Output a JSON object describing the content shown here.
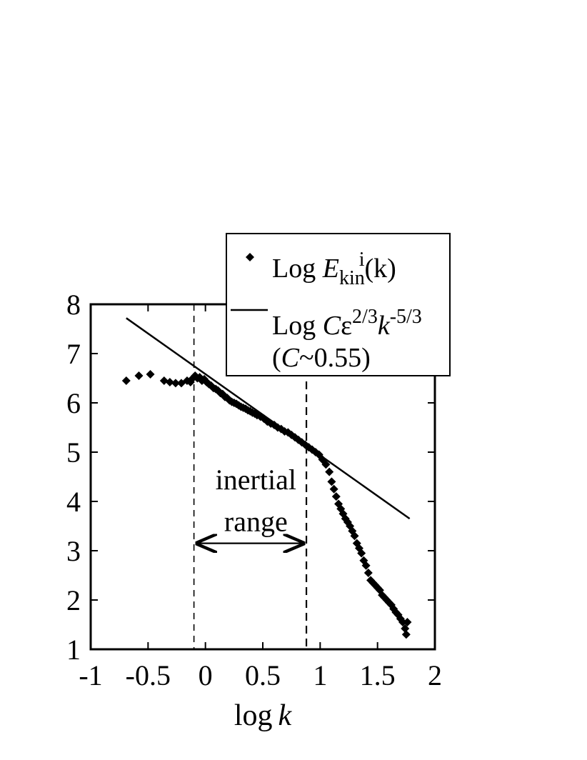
{
  "chart_data": {
    "type": "scatter",
    "xlabel": "log k",
    "ylabel": "",
    "xlim": [
      -1,
      2
    ],
    "ylim": [
      1,
      8
    ],
    "x_ticks": [
      "-1",
      "-0.5",
      "0",
      "0.5",
      "1",
      "1.5",
      "2"
    ],
    "y_ticks": [
      "1",
      "2",
      "3",
      "4",
      "5",
      "6",
      "7",
      "8"
    ],
    "legend_position": "top-right",
    "legend": [
      {
        "marker": "diamond",
        "prefix": "Log ",
        "var": "E",
        "sub": "kin",
        "sup": "i",
        "suffix": "(k)"
      },
      {
        "marker": "line",
        "line1": "Log Cε^(2/3) k^(-5/3)",
        "line2": "(C~0.55)"
      }
    ],
    "series": [
      {
        "name": "Log E_kin^i(k)",
        "style": "diamond-markers",
        "x": [
          -0.69,
          -0.58,
          -0.48,
          -0.36,
          -0.31,
          -0.26,
          -0.21,
          -0.16,
          -0.13,
          -0.11,
          -0.09,
          -0.07,
          -0.05,
          -0.03,
          -0.01,
          0.01,
          0.03,
          0.05,
          0.07,
          0.09,
          0.11,
          0.13,
          0.15,
          0.17,
          0.19,
          0.21,
          0.23,
          0.25,
          0.27,
          0.29,
          0.31,
          0.33,
          0.35,
          0.37,
          0.39,
          0.41,
          0.43,
          0.45,
          0.48,
          0.51,
          0.54,
          0.57,
          0.6,
          0.63,
          0.66,
          0.69,
          0.72,
          0.75,
          0.78,
          0.81,
          0.84,
          0.87,
          0.9,
          0.93,
          0.96,
          0.99,
          1.02,
          1.05,
          1.08,
          1.1,
          1.12,
          1.14,
          1.16,
          1.18,
          1.2,
          1.22,
          1.24,
          1.26,
          1.28,
          1.3,
          1.32,
          1.34,
          1.36,
          1.38,
          1.4,
          1.42,
          1.44,
          1.46,
          1.48,
          1.5,
          1.52,
          1.54,
          1.56,
          1.58,
          1.6,
          1.62,
          1.64,
          1.66,
          1.68,
          1.7,
          1.72,
          1.74,
          1.75,
          1.76
        ],
        "y": [
          6.45,
          6.55,
          6.58,
          6.45,
          6.42,
          6.4,
          6.4,
          6.45,
          6.42,
          6.5,
          6.55,
          6.5,
          6.52,
          6.45,
          6.48,
          6.42,
          6.38,
          6.35,
          6.3,
          6.28,
          6.25,
          6.2,
          6.18,
          6.12,
          6.1,
          6.05,
          6.02,
          6.0,
          5.98,
          5.95,
          5.92,
          5.9,
          5.88,
          5.85,
          5.83,
          5.8,
          5.78,
          5.75,
          5.72,
          5.68,
          5.62,
          5.58,
          5.55,
          5.5,
          5.47,
          5.42,
          5.4,
          5.35,
          5.3,
          5.25,
          5.2,
          5.15,
          5.1,
          5.05,
          5.0,
          4.95,
          4.85,
          4.75,
          4.6,
          4.4,
          4.25,
          4.1,
          3.95,
          3.85,
          3.75,
          3.65,
          3.58,
          3.5,
          3.4,
          3.3,
          3.15,
          3.05,
          2.95,
          2.8,
          2.7,
          2.55,
          2.4,
          2.35,
          2.3,
          2.25,
          2.2,
          2.1,
          2.05,
          2.0,
          1.95,
          1.9,
          1.82,
          1.75,
          1.7,
          1.62,
          1.55,
          1.42,
          1.3,
          1.55
        ]
      },
      {
        "name": "Log Cε^(2/3) k^(-5/3) (C~0.55)",
        "style": "line",
        "x": [
          -0.69,
          1.78
        ],
        "y": [
          7.72,
          3.65
        ]
      }
    ],
    "annotations": {
      "inertial_line1": "inertial",
      "inertial_line2": "range",
      "inertial_x_start": -0.1,
      "inertial_x_end": 0.88,
      "arrow_y": 3.15,
      "label_y1": 4.45,
      "label_y2": 3.6
    }
  }
}
